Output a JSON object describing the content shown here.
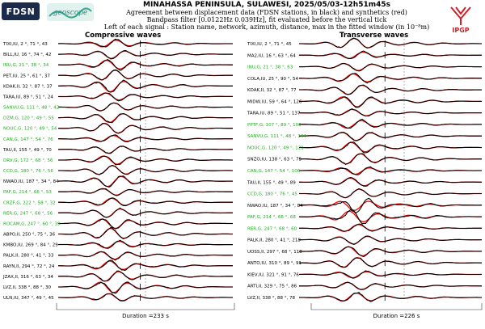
{
  "header": {
    "title": "MINAHASSA PENINSULA, SULAWESI, 2025/05/03-12h51m45s",
    "line1": "Agreement between displacement data (FDSN stations, in black) and synthetics (red)",
    "line2": "Bandpass filter [0.0122Hz 0.039Hz], fit evaluated before the vertical tick",
    "line3": "Left of each signal : Station name, network, azimuth, distance, max in the fitted window (in 10⁻⁸m)"
  },
  "logos": {
    "fdsn": "FDSN",
    "geoscope": "geoscope",
    "ipgp": "IPGP"
  },
  "colors": {
    "data": "#000000",
    "synthetic": "#ff0000",
    "label_default": "#000000",
    "label_alt": "#22aa22",
    "ipgp_red": "#d12127"
  },
  "chart_data": [
    {
      "type": "line",
      "title": "Compressive waves",
      "duration_label": "Duration =233 s",
      "rows": [
        {
          "label": "TIXI,IU, 2 °, 71 °, 43",
          "color": "black"
        },
        {
          "label": "BILL,IU, 16 °, 74 °, 42",
          "color": "black"
        },
        {
          "label": "INU,G, 21 °, 38 °, 34",
          "color": "green"
        },
        {
          "label": "PET,IU, 25 °, 61 °, 37",
          "color": "black"
        },
        {
          "label": "KDAK,II, 32 °, 87 °, 37",
          "color": "black"
        },
        {
          "label": "TARA,IU, 89 °, 51 °, 24",
          "color": "black"
        },
        {
          "label": "SANVU,G, 111 °, 48 °, 42",
          "color": "green"
        },
        {
          "label": "DZM,G, 120 °, 49 °, 55",
          "color": "green"
        },
        {
          "label": "NOUC,G, 120 °, 49 °, 54",
          "color": "green"
        },
        {
          "label": "CAN,G, 147 °, 54 °, 76",
          "color": "green"
        },
        {
          "label": "TAU,II, 155 °, 49 °, 70",
          "color": "black"
        },
        {
          "label": "DRV,G, 172 °, 68 °, 56",
          "color": "green"
        },
        {
          "label": "CCD,G, 180 °, 76 °, 56",
          "color": "green"
        },
        {
          "label": "NWAO,IU, 187 °, 34 °, 84",
          "color": "black"
        },
        {
          "label": "PAF,G, 214 °, 66 °, 53",
          "color": "green"
        },
        {
          "label": "CRZF,G, 222 °, 58 °, 32",
          "color": "green"
        },
        {
          "label": "RER,G, 247 °, 68 °, 56",
          "color": "green"
        },
        {
          "label": "ROCAM,G, 247 °, 60 °, 39",
          "color": "green"
        },
        {
          "label": "ABPO,II, 250 °, 75 °, 36",
          "color": "black"
        },
        {
          "label": "KMBO,IU, 269 °, 84 °, 29",
          "color": "black"
        },
        {
          "label": "PALK,II, 280 °, 41 °, 33",
          "color": "black"
        },
        {
          "label": "RAYN,II, 294 °, 72 °, 24",
          "color": "black"
        },
        {
          "label": "JZAX,II, 316 °, 63 °, 34",
          "color": "black"
        },
        {
          "label": "LVZ,II, 338 °, 88 °, 30",
          "color": "black"
        },
        {
          "label": "ULN,IU, 347 °, 49 °, 45",
          "color": "black"
        }
      ]
    },
    {
      "type": "line",
      "title": "Transverse waves",
      "duration_label": "Duration =226 s",
      "rows": [
        {
          "label": "TIXI,IU, 2 °, 71 °, 45",
          "color": "black"
        },
        {
          "label": "MA2,IU, 16 °, 63 °, 64",
          "color": "black"
        },
        {
          "label": "INU,G, 21 °, 38 °, 63",
          "color": "green"
        },
        {
          "label": "COLA,IU, 25 °, 90 °, 54",
          "color": "black"
        },
        {
          "label": "KDAK,II, 32 °, 87 °, 77",
          "color": "black"
        },
        {
          "label": "MIDW,IU, 59 °, 64 °, 126",
          "color": "black"
        },
        {
          "label": "TARA,IU, 89 °, 51 °, 137",
          "color": "black"
        },
        {
          "label": "PPTF,G, 107 °, 89 °, 100",
          "color": "green"
        },
        {
          "label": "SANVU,G, 111 °, 48 °, 144",
          "color": "green"
        },
        {
          "label": "NOUC,G, 120 °, 49 °, 121",
          "color": "green"
        },
        {
          "label": "SNZO,IU, 138 °, 63 °, 75",
          "color": "black"
        },
        {
          "label": "CAN,G, 147 °, 54 °, 106",
          "color": "green"
        },
        {
          "label": "TAU,II, 155 °, 49 °, 89",
          "color": "black"
        },
        {
          "label": "CCD,G, 180 °, 76 °, 45",
          "color": "green"
        },
        {
          "label": "NWAO,IU, 187 °, 34 °, 84",
          "color": "black"
        },
        {
          "label": "PAF,G, 214 °, 66 °, 68",
          "color": "green"
        },
        {
          "label": "RER,G, 247 °, 68 °, 60",
          "color": "green"
        },
        {
          "label": "PALK,II, 280 °, 41 °, 218",
          "color": "black"
        },
        {
          "label": "UOSS,II, 297 °, 68 °, 118",
          "color": "black"
        },
        {
          "label": "ANTO,IU, 310 °, 89 °, 91",
          "color": "black"
        },
        {
          "label": "KIEV,IU, 321 °, 91 °, 76",
          "color": "black"
        },
        {
          "label": "ARTI,II, 329 °, 75 °, 86",
          "color": "black"
        },
        {
          "label": "LVZ,II, 338 °, 88 °, 78",
          "color": "black"
        }
      ]
    }
  ]
}
